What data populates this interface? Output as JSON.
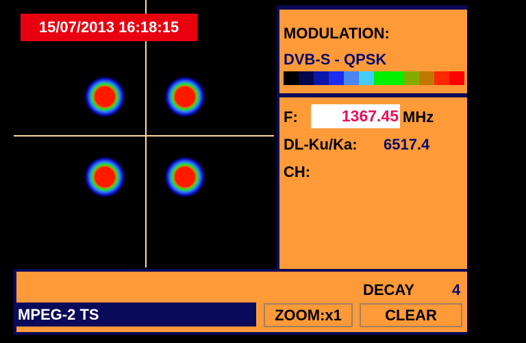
{
  "datetime": "15/07/2013 16:18:15",
  "modulation": {
    "label": "MODULATION:",
    "value": "DVB-S - QPSK",
    "color_scale": [
      "#000000",
      "#06064a",
      "#0c16a8",
      "#1c2cf0",
      "#4a86f0",
      "#44ccf4",
      "#00f000",
      "#00f000",
      "#84ac00",
      "#c07800",
      "#ff2800",
      "#ff0000"
    ]
  },
  "frequency": {
    "label": "F:",
    "value": "1367.45",
    "unit": "MHz",
    "dl_label": "DL-Ku/Ka:",
    "dl_value": "6517.4",
    "ch_label": "CH:"
  },
  "bottom": {
    "decay_label": "DECAY",
    "decay_value": "4",
    "stream": "MPEG-2 TS",
    "zoom_label": "ZOOM:x1",
    "clear_label": "CLEAR"
  }
}
